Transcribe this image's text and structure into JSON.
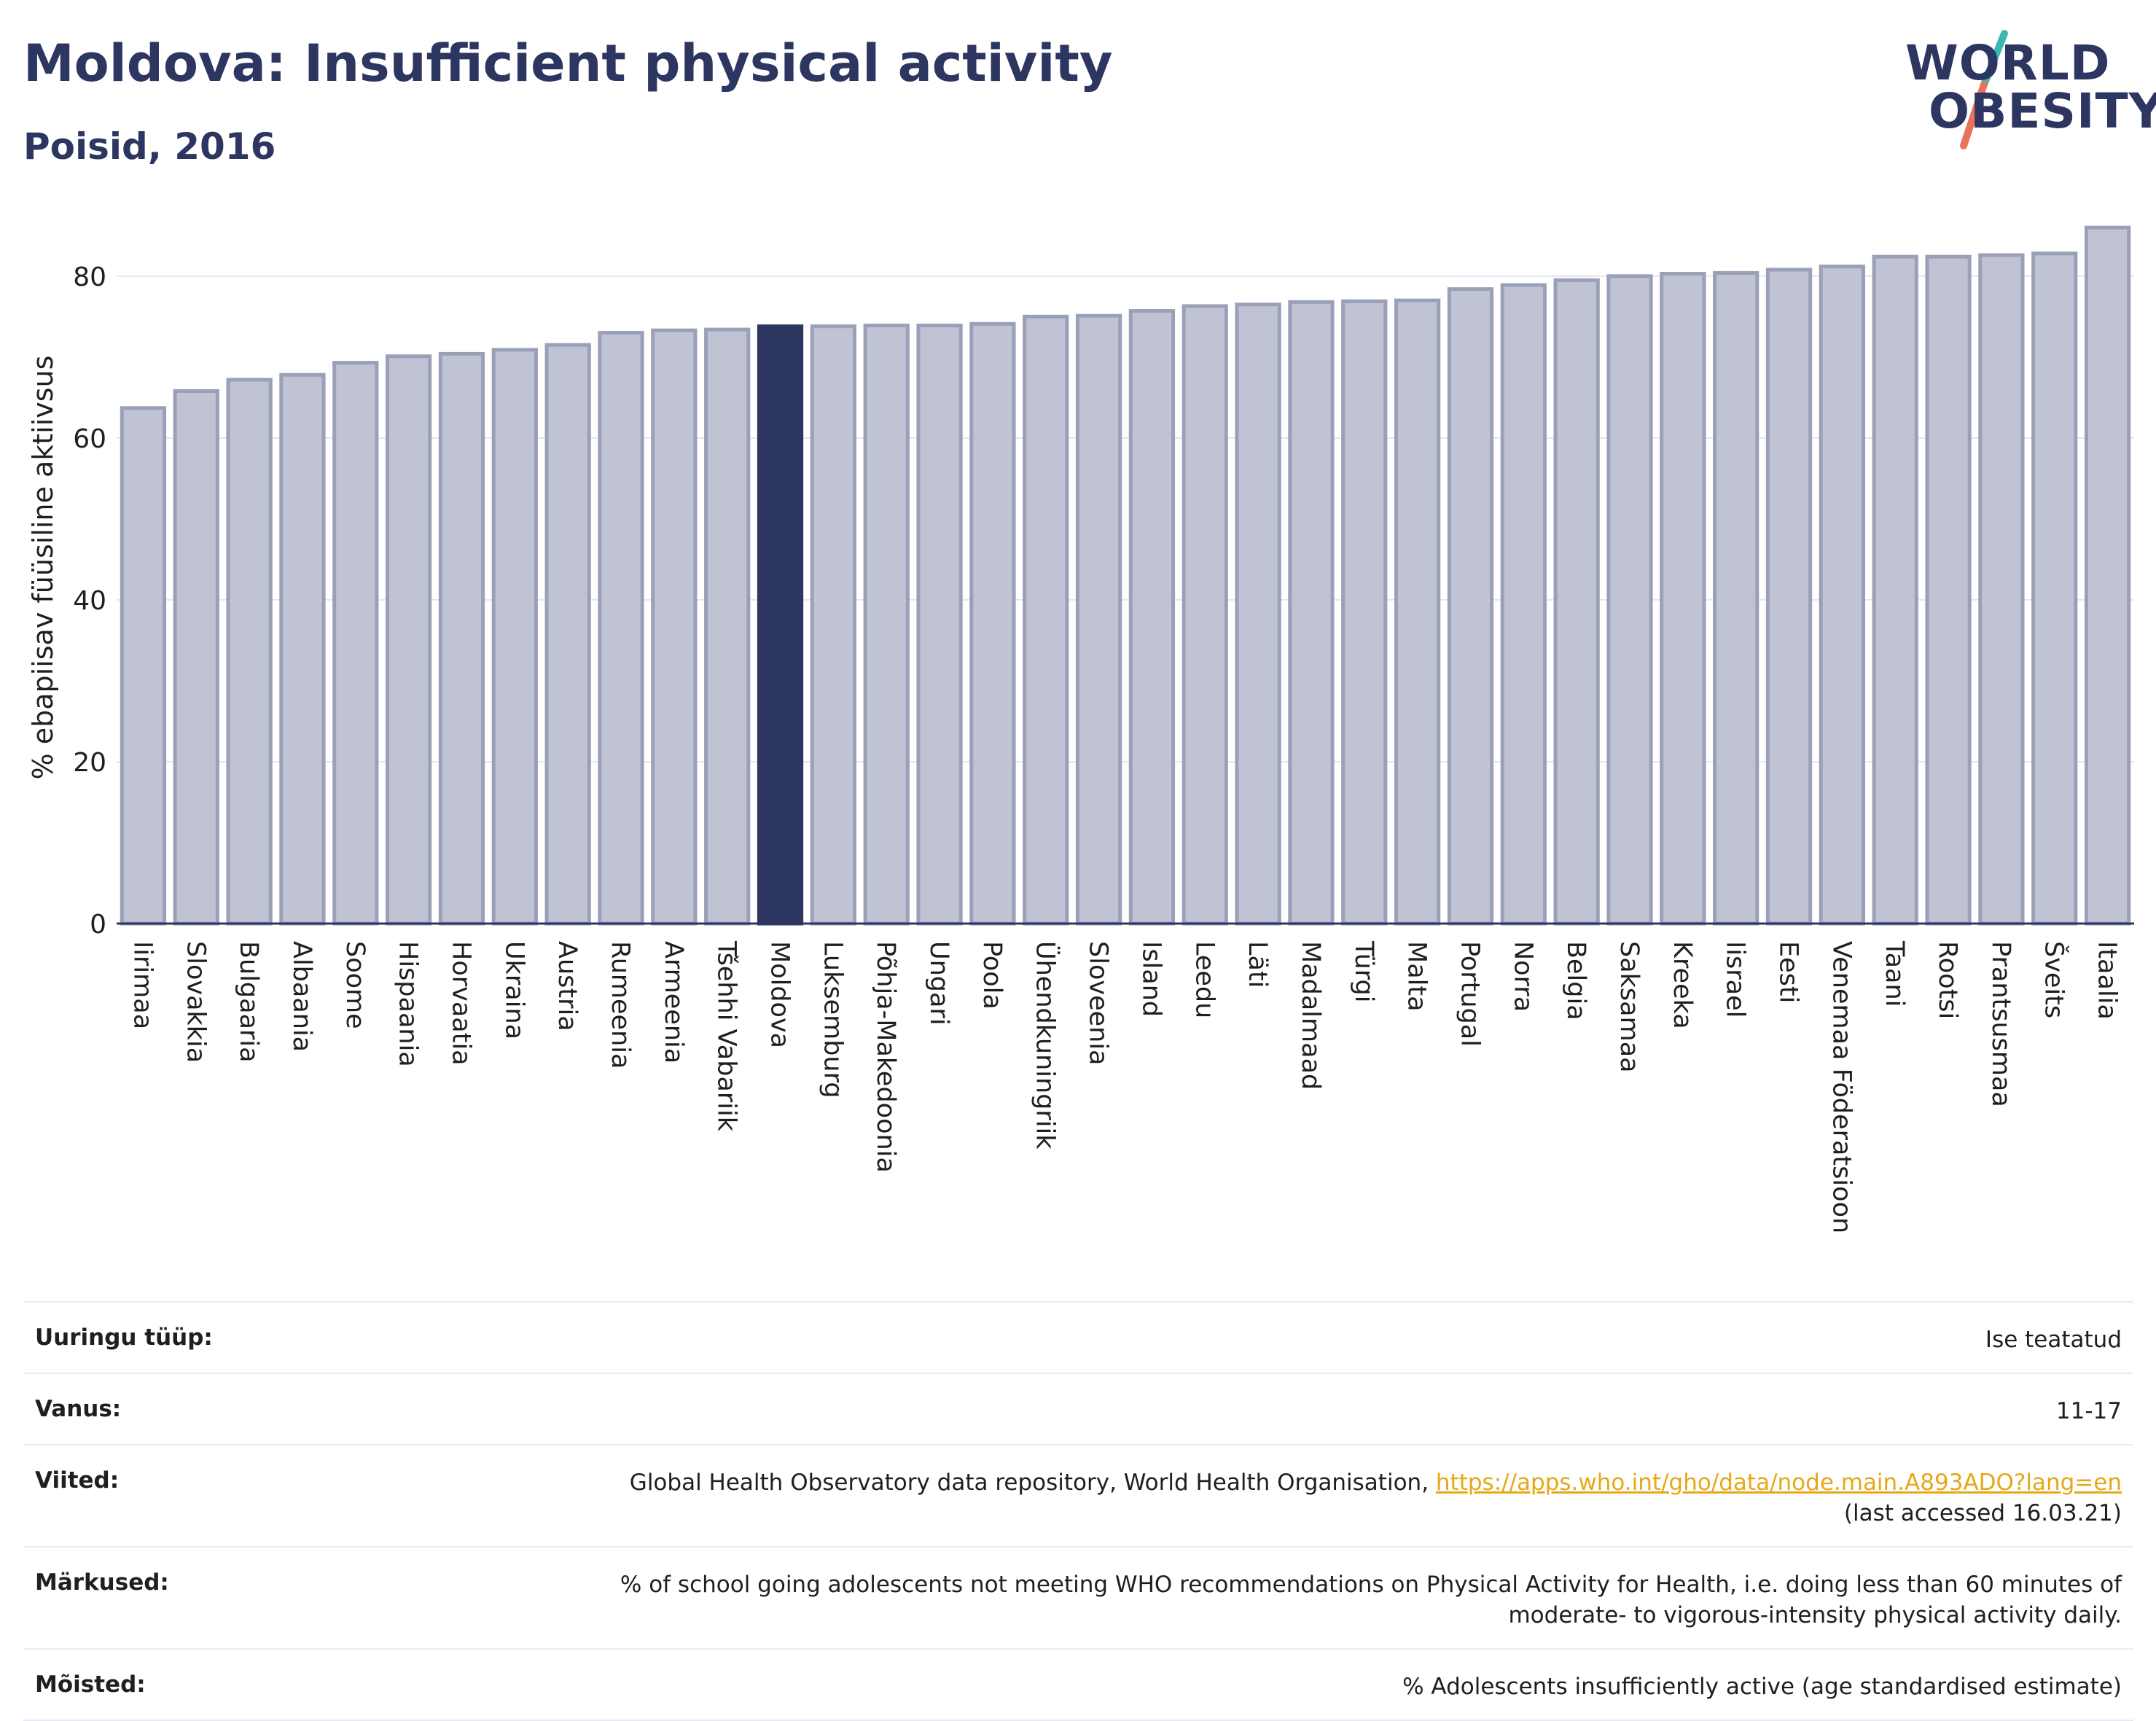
{
  "header": {
    "title": "Moldova: Insufficient physical activity",
    "subtitle": "Poisid, 2016"
  },
  "logo": {
    "line1": "WORLD",
    "line2": "OBESITY",
    "colors": {
      "text": "#2d3561",
      "slash_top": "#3ab7b0",
      "slash_bottom": "#e8735a"
    }
  },
  "chart_data": {
    "type": "bar",
    "ylabel": "% ebapiisav füüsiline aktiivsus",
    "xlabel": "",
    "ylim": [
      0,
      88
    ],
    "yticks": [
      0,
      20,
      40,
      60,
      80
    ],
    "grid": true,
    "highlight": "Moldova",
    "colors": {
      "bar": "#bfc3d3",
      "bar_edge": "#9aa0b8",
      "highlight": "#2d3561",
      "grid": "#e3e6ee"
    },
    "categories": [
      "Iirimaa",
      "Slovakkia",
      "Bulgaaria",
      "Albaania",
      "Soome",
      "Hispaania",
      "Horvaatia",
      "Ukraina",
      "Austria",
      "Rumeenia",
      "Armeenia",
      "Tšehhi Vabariik",
      "Moldova",
      "Luksemburg",
      "Põhja-Makedoonia",
      "Ungari",
      "Poola",
      "Ühendkuningriik",
      "Sloveenia",
      "Island",
      "Leedu",
      "Läti",
      "Madalmaad",
      "Türgi",
      "Malta",
      "Portugal",
      "Norra",
      "Belgia",
      "Saksamaa",
      "Kreeka",
      "Iisrael",
      "Eesti",
      "Venemaa Föderatsioon",
      "Taani",
      "Rootsi",
      "Prantsusmaa",
      "Šveits",
      "Itaalia"
    ],
    "values": [
      63.7,
      65.8,
      67.2,
      67.8,
      69.3,
      70.1,
      70.4,
      70.9,
      71.5,
      73.0,
      73.3,
      73.4,
      73.8,
      73.8,
      73.9,
      73.9,
      74.1,
      75.0,
      75.1,
      75.7,
      76.3,
      76.5,
      76.8,
      76.9,
      77.0,
      78.4,
      78.9,
      79.5,
      80.0,
      80.3,
      80.4,
      80.8,
      81.2,
      82.4,
      82.4,
      82.6,
      82.8,
      86.0
    ]
  },
  "info": {
    "survey_type": {
      "label": "Uuringu tüüp:",
      "value": "Ise teatatud"
    },
    "age": {
      "label": "Vanus:",
      "value": "11-17"
    },
    "references": {
      "label": "Viited:",
      "text": "Global Health Observatory data repository, World Health Organisation, ",
      "link": "https://apps.who.int/gho/data/node.main.A893ADO?lang=en",
      "accessed": "(last accessed 16.03.21)"
    },
    "notes": {
      "label": "Märkused:",
      "line1": "% of school going adolescents not meeting WHO recommendations on Physical Activity for Health, i.e. doing less than 60 minutes of",
      "line2": "moderate- to vigorous-intensity physical activity daily."
    },
    "definitions": {
      "label": "Mõisted:",
      "value": "% Adolescents insufficiently active (age standardised estimate)"
    }
  }
}
